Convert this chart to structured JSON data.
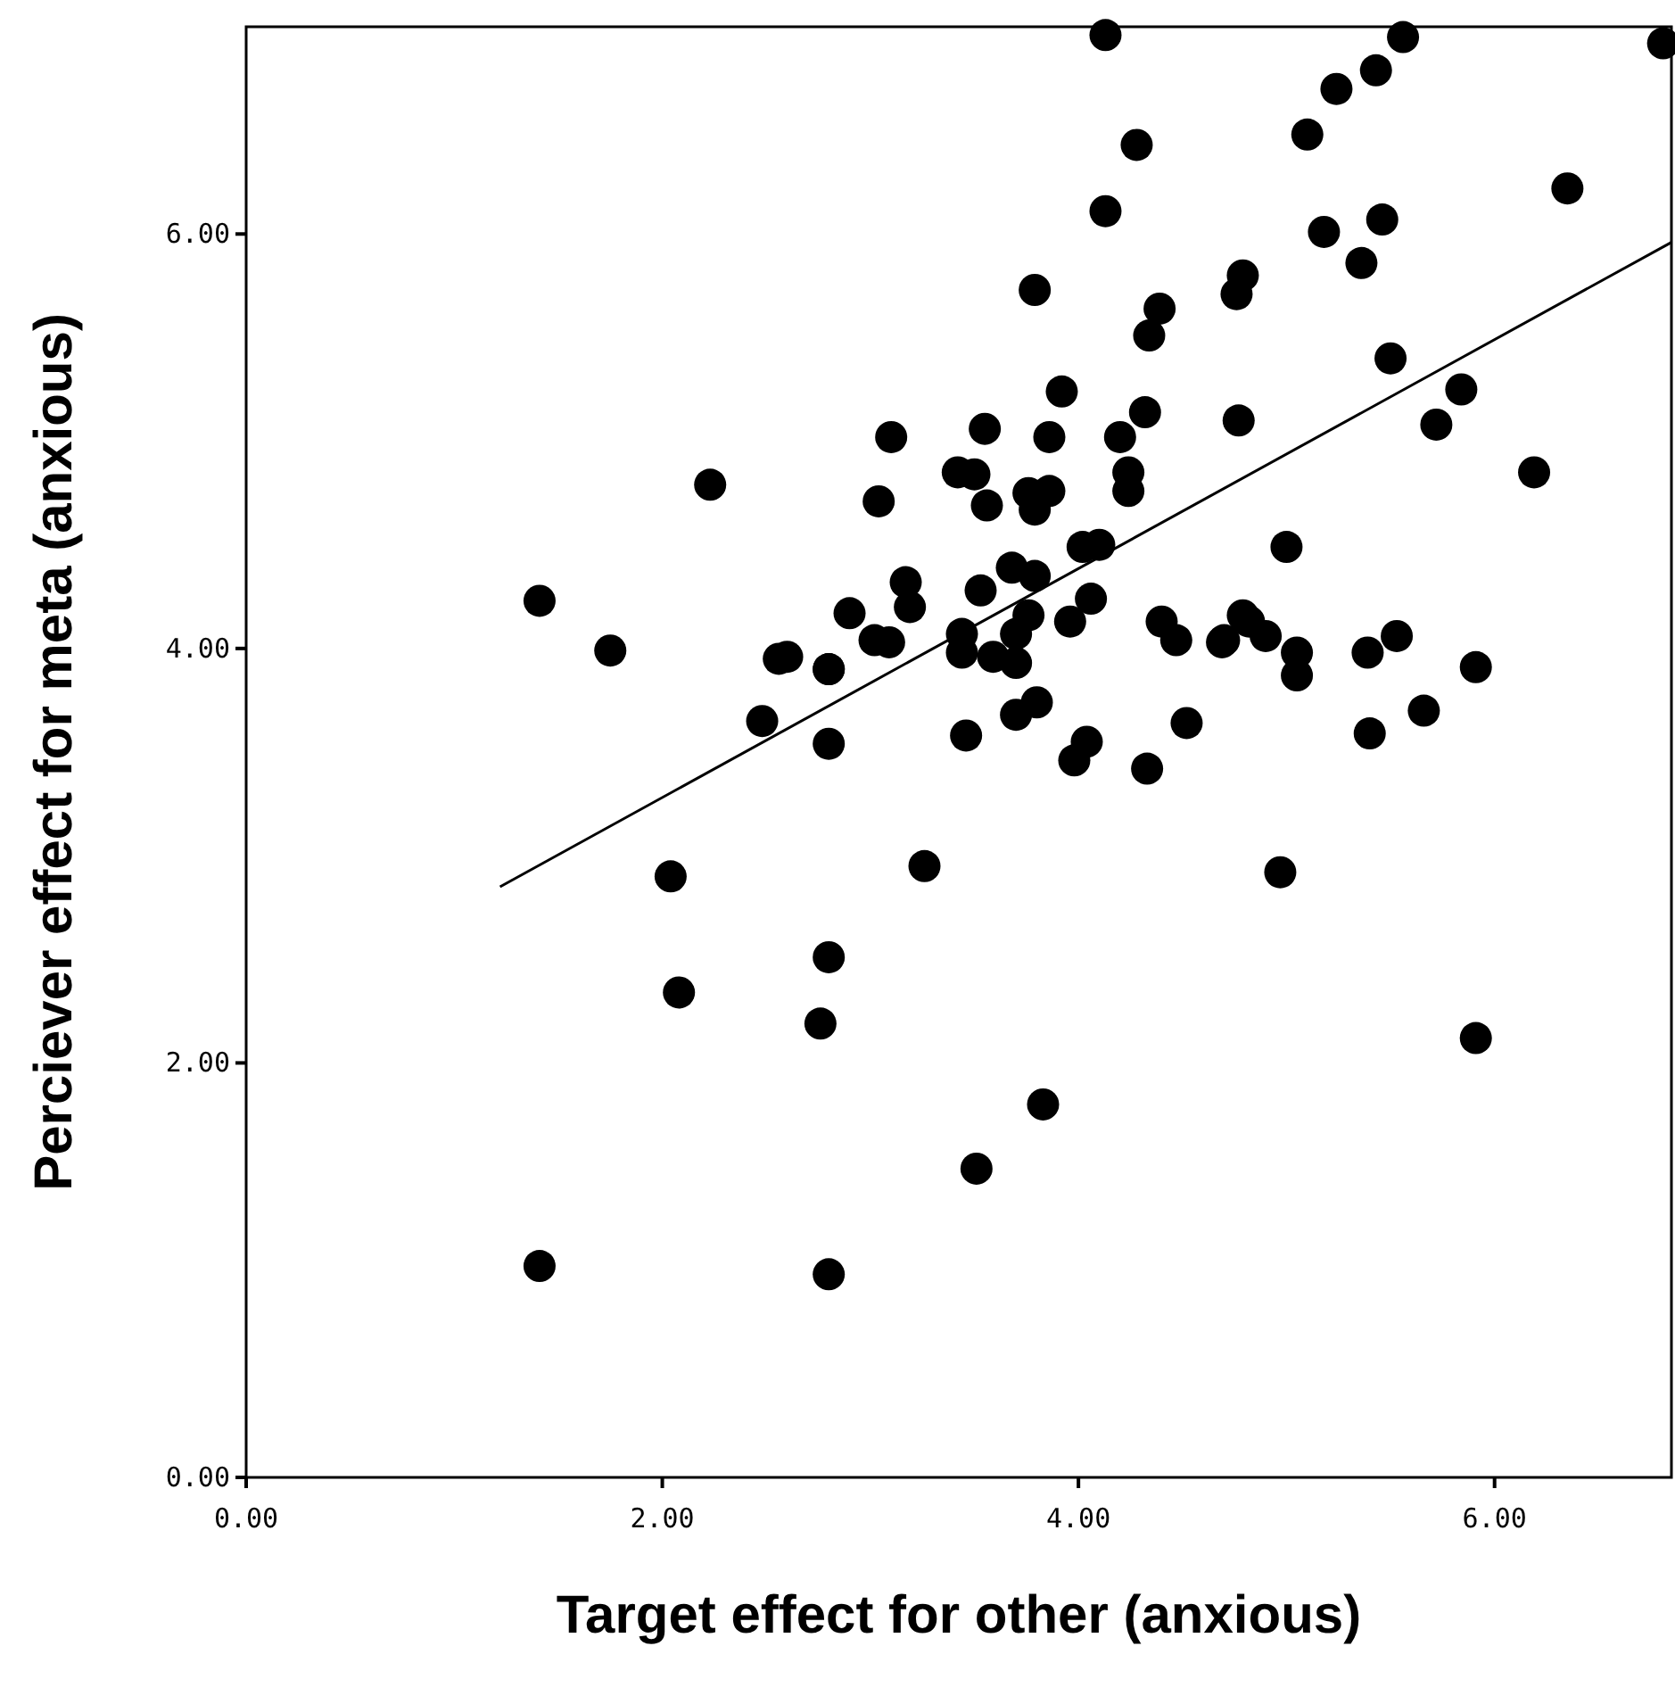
{
  "chart_data": {
    "type": "scatter",
    "xlabel": "Target effect for other (anxious)",
    "ylabel": "Perciever effect for meta (anxious)",
    "xlim": [
      0,
      6.85
    ],
    "ylim": [
      0,
      7
    ],
    "xticks": [
      {
        "value": 0,
        "label": "0.00"
      },
      {
        "value": 2,
        "label": "2.00"
      },
      {
        "value": 4,
        "label": "4.00"
      },
      {
        "value": 6,
        "label": "6.00"
      }
    ],
    "yticks": [
      {
        "value": 0,
        "label": "0.00"
      },
      {
        "value": 2,
        "label": "2.00"
      },
      {
        "value": 4,
        "label": "4.00"
      },
      {
        "value": 6,
        "label": "6.00"
      }
    ],
    "grid": false,
    "marker": "circle",
    "series": [
      {
        "color": "#000000",
        "x": [
          1.41,
          1.41,
          1.75,
          2.23,
          2.04,
          2.08,
          2.48,
          2.56,
          2.8,
          2.8,
          2.8,
          2.76,
          2.8,
          2.9,
          3.02,
          3.09,
          3.04,
          3.1,
          3.17,
          3.19,
          3.26,
          3.79,
          4.39,
          4.34,
          4.76,
          3.92,
          4.32,
          4.2,
          3.55,
          3.86,
          4.24,
          4.24,
          3.42,
          3.5,
          3.56,
          3.76,
          3.86,
          3.79,
          4.77,
          4.02,
          4.1,
          3.68,
          3.79,
          3.53,
          2.8,
          2.6,
          3.44,
          3.44,
          3.59,
          3.7,
          3.76,
          3.7,
          4.06,
          3.96,
          4.4,
          4.47,
          4.7,
          4.79,
          3.46,
          3.7,
          3.8,
          3.98,
          4.04,
          4.33,
          4.52,
          5.56,
          5.43,
          5.24,
          5.1,
          6.81,
          6.35,
          5.18,
          5.46,
          5.36,
          4.79,
          5.5,
          5.84,
          5.72,
          6.19,
          5,
          4.69,
          4.82,
          4.9,
          5.05,
          5.05,
          5.39,
          5.53,
          5.91,
          5.4,
          5.66,
          4.13,
          4.13,
          4.28,
          4.97,
          5.91,
          3.51,
          3.83
        ],
        "values": [
          1.02,
          4.23,
          3.99,
          4.79,
          2.9,
          2.34,
          3.65,
          3.95,
          3.9,
          3.54,
          2.51,
          2.19,
          0.98,
          4.17,
          4.04,
          4.03,
          4.71,
          5.02,
          4.32,
          4.2,
          2.95,
          5.73,
          5.64,
          5.51,
          5.71,
          5.24,
          5.14,
          5.02,
          5.06,
          5.02,
          4.85,
          4.76,
          4.85,
          4.84,
          4.69,
          4.75,
          4.76,
          4.67,
          5.1,
          4.49,
          4.5,
          4.39,
          4.35,
          4.28,
          3.9,
          3.96,
          4.07,
          3.98,
          3.96,
          3.93,
          4.16,
          4.07,
          4.24,
          4.13,
          4.13,
          4.04,
          4.04,
          4.16,
          3.58,
          3.68,
          3.74,
          3.46,
          3.55,
          3.42,
          3.64,
          6.95,
          6.79,
          6.7,
          6.48,
          6.92,
          6.22,
          6.01,
          6.07,
          5.86,
          5.8,
          5.4,
          5.25,
          5.08,
          4.85,
          4.49,
          4.03,
          4.13,
          4.06,
          3.98,
          3.87,
          3.98,
          4.06,
          3.91,
          3.59,
          3.7,
          6.96,
          6.11,
          6.43,
          2.92,
          2.12,
          1.49,
          1.8
        ]
      },
      {
        "type": "line",
        "color": "#000000",
        "x": [
          1.22,
          6.85
        ],
        "values": [
          2.85,
          5.96
        ],
        "marker": "none"
      }
    ]
  }
}
